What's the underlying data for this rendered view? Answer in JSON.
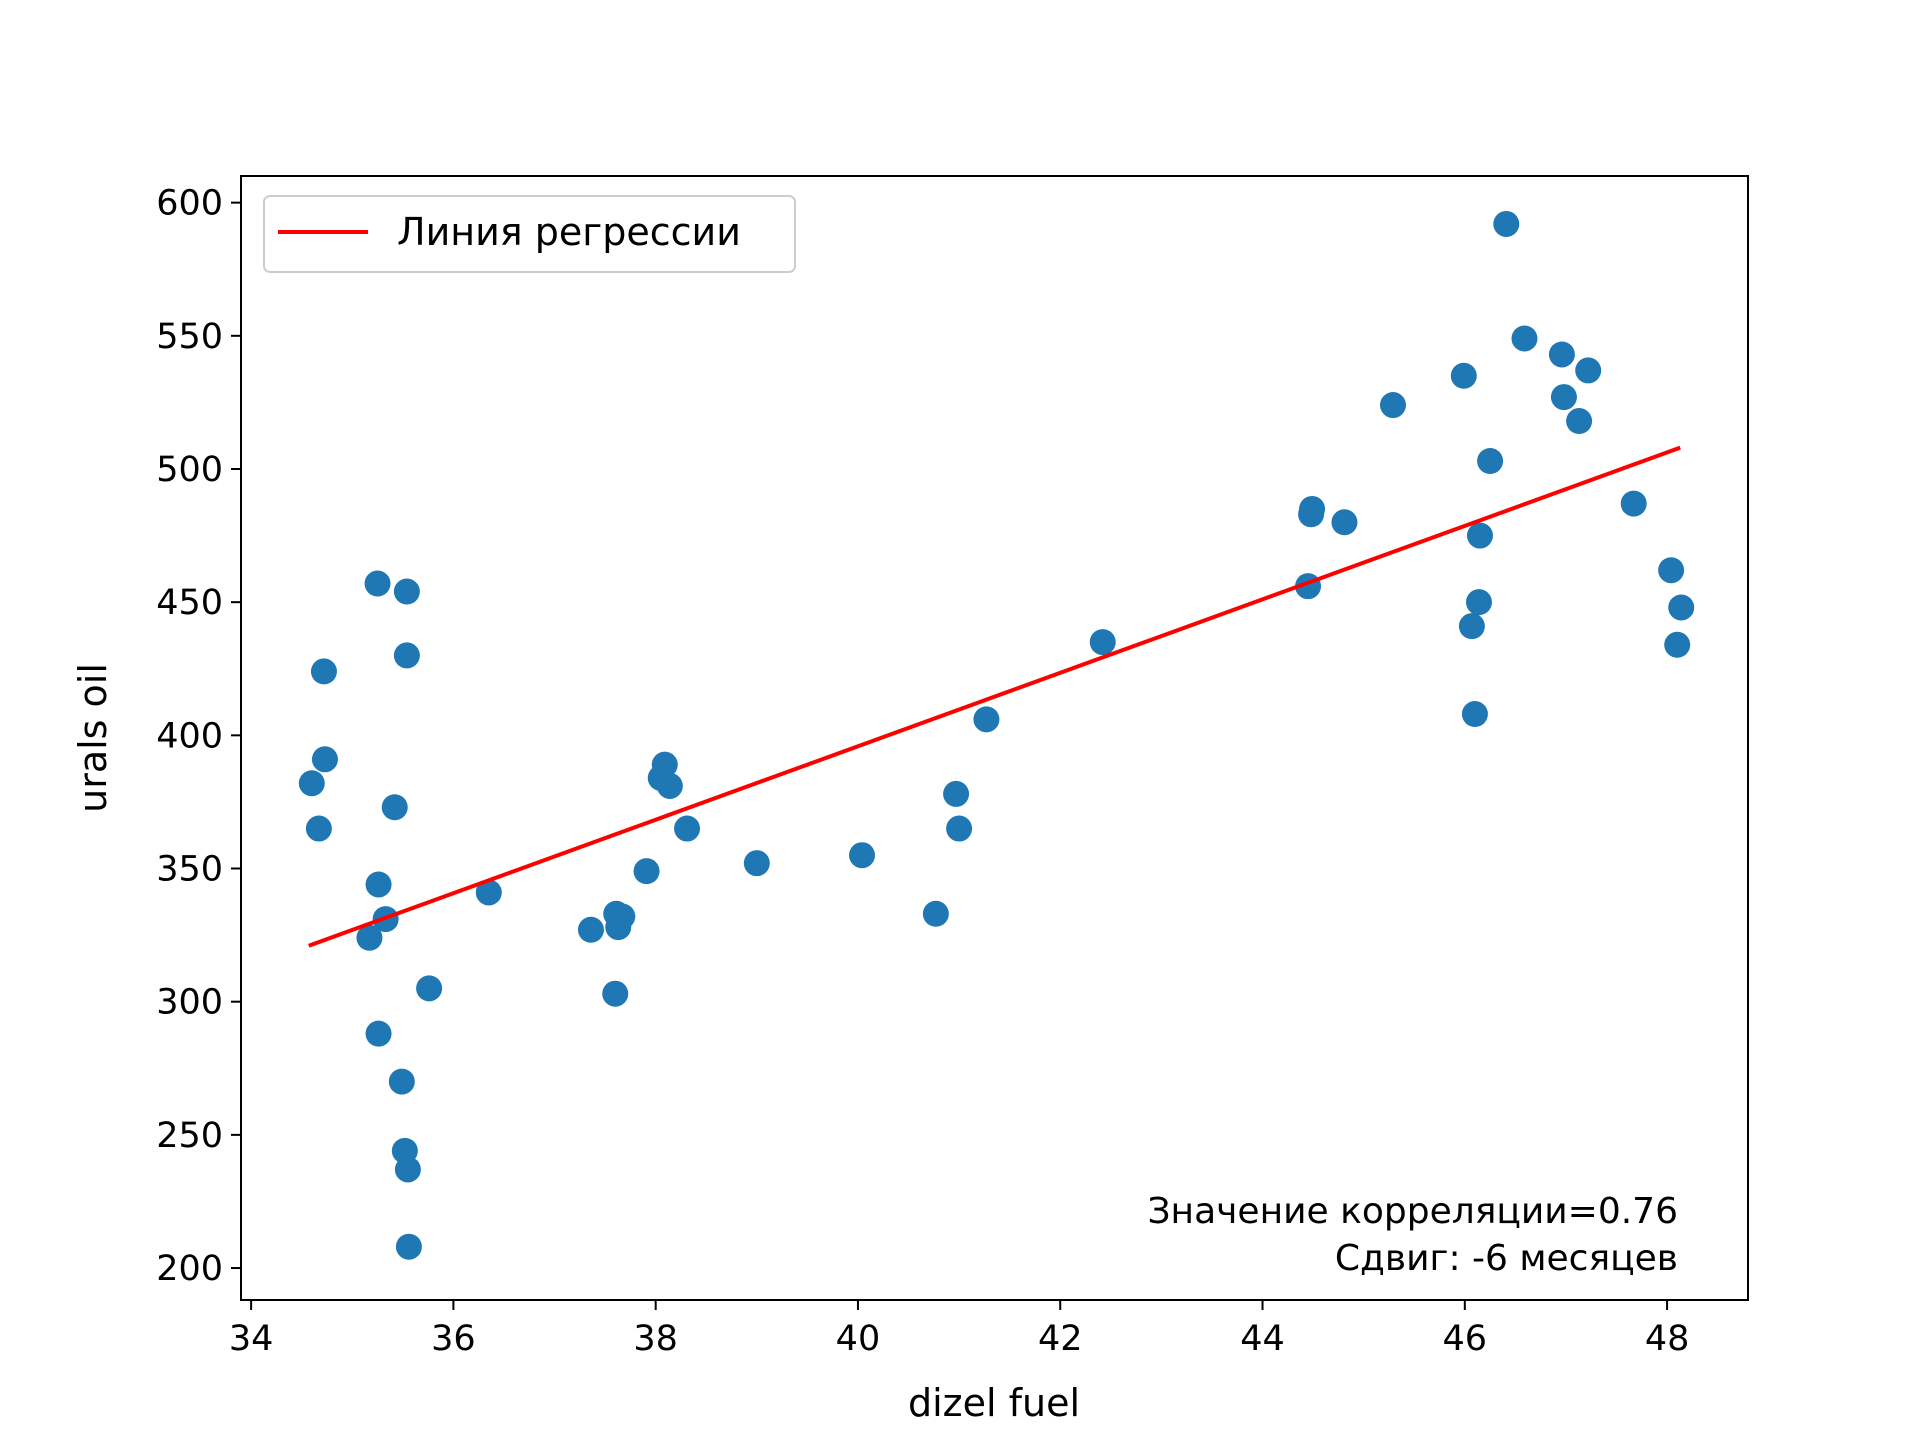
{
  "chart_data": {
    "type": "scatter",
    "title": "",
    "xlabel": "dizel fuel",
    "ylabel": "urals oil",
    "xlim": [
      33.9,
      48.8
    ],
    "ylim": [
      188,
      610
    ],
    "xticks": [
      34,
      36,
      38,
      40,
      42,
      44,
      46,
      48
    ],
    "yticks": [
      200,
      250,
      300,
      350,
      400,
      450,
      500,
      550,
      600
    ],
    "grid": false,
    "legend": {
      "position": "top-left",
      "entries": [
        "Линия регрессии"
      ]
    },
    "annotations": [
      "Значение корреляции=0.76",
      "Сдвиг: -6 месяцев"
    ],
    "colors": {
      "points": "#1f77b4",
      "line": "#ff0000"
    },
    "regression_line": {
      "x": [
        34.57,
        48.13
      ],
      "y": [
        321,
        508
      ]
    },
    "series": [
      {
        "x": [
          34.6,
          34.67,
          34.72,
          34.73,
          35.17,
          35.25,
          35.26,
          35.26,
          35.33,
          35.42,
          35.49,
          35.52,
          35.54,
          35.54,
          35.55,
          35.56,
          35.76,
          36.35,
          37.36,
          37.6,
          37.61,
          37.63,
          37.67,
          37.91,
          38.05,
          38.09,
          38.14,
          38.31,
          39.0,
          40.04,
          40.77,
          40.97,
          41.0,
          41.27,
          42.42,
          44.45,
          44.48,
          44.49,
          44.81,
          45.29,
          45.99,
          46.07,
          46.1,
          46.14,
          46.15,
          46.25,
          46.41,
          46.59,
          46.96,
          46.98,
          47.13,
          47.22,
          47.67,
          48.04,
          48.1,
          48.14
        ],
        "y": [
          382,
          365,
          424,
          391,
          324,
          457,
          288,
          344,
          331,
          373,
          270,
          244,
          430,
          454,
          237,
          208,
          305,
          341,
          327,
          303,
          333,
          328,
          332,
          349,
          384,
          389,
          381,
          365,
          352,
          355,
          333,
          378,
          365,
          406,
          435,
          456,
          483,
          485,
          480,
          524,
          535,
          441,
          408,
          450,
          475,
          503,
          592,
          549,
          543,
          527,
          518,
          537,
          487,
          462,
          434,
          448
        ]
      }
    ]
  }
}
